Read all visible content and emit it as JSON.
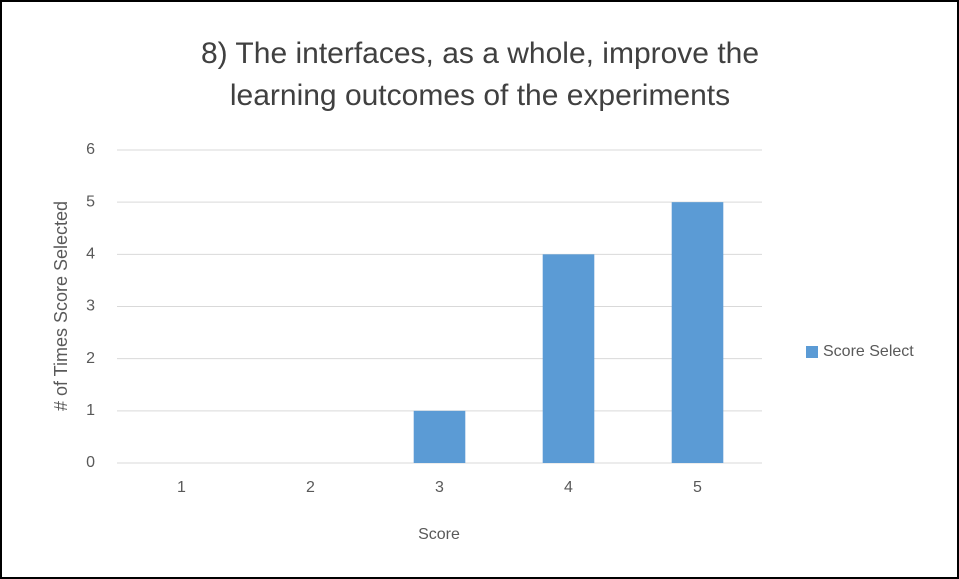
{
  "chart_data": {
    "type": "bar",
    "title": "8) The interfaces, as a whole, improve the learning outcomes of the experiments",
    "x_label": "Score",
    "y_label": "# of Times Score Selected",
    "categories": [
      "1",
      "2",
      "3",
      "4",
      "5"
    ],
    "series": [
      {
        "name": "Score Select",
        "color": "#5b9bd5",
        "values": [
          0,
          0,
          1,
          4,
          5
        ]
      }
    ],
    "ylim": [
      0,
      6
    ],
    "yticks": [
      0,
      1,
      2,
      3,
      4,
      5,
      6
    ],
    "grid": true,
    "legend": "right"
  }
}
